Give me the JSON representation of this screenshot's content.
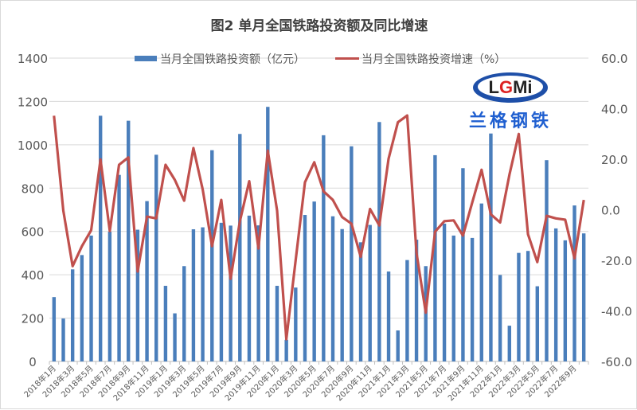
{
  "chart_data": {
    "type": "bar+line",
    "title": "图2 单月全国铁路投资额及同比增速",
    "x": [
      "2018年1月",
      "2018年2月",
      "2018年3月",
      "2018年4月",
      "2018年5月",
      "2018年6月",
      "2018年7月",
      "2018年8月",
      "2018年9月",
      "2018年10月",
      "2018年11月",
      "2018年12月",
      "2019年1月",
      "2019年2月",
      "2019年3月",
      "2019年4月",
      "2019年5月",
      "2019年6月",
      "2019年7月",
      "2019年8月",
      "2019年9月",
      "2019年10月",
      "2019年11月",
      "2019年12月",
      "2020年1月",
      "2020年2月",
      "2020年3月",
      "2020年4月",
      "2020年5月",
      "2020年6月",
      "2020年7月",
      "2020年8月",
      "2020年9月",
      "2020年10月",
      "2020年11月",
      "2020年12月",
      "2021年1月",
      "2021年2月",
      "2021年3月",
      "2021年4月",
      "2021年5月",
      "2021年6月",
      "2021年7月",
      "2021年8月",
      "2021年9月",
      "2021年10月",
      "2021年11月",
      "2021年12月",
      "2022年1月",
      "2022年2月",
      "2022年3月",
      "2022年4月",
      "2022年5月",
      "2022年6月",
      "2022年7月",
      "2022年8月",
      "2022年9月",
      "2022年10月"
    ],
    "x_tick_labels": [
      "2018年1月",
      "2018年3月",
      "2018年5月",
      "2018年7月",
      "2018年9月",
      "2018年11月",
      "2019年1月",
      "2019年3月",
      "2019年5月",
      "2019年7月",
      "2019年9月",
      "2019年11月",
      "2020年1月",
      "2020年3月",
      "2020年5月",
      "2020年7月",
      "2020年9月",
      "2020年11月",
      "2021年1月",
      "2021年3月",
      "2021年5月",
      "2021年7月",
      "2021年9月",
      "2021年11月",
      "2022年1月",
      "2022年3月",
      "2022年5月",
      "2022年7月",
      "2022年9月"
    ],
    "series": [
      {
        "name": "当月全国铁路投资额（亿元）",
        "type": "bar",
        "axis": "left",
        "color": "#4a7ebb",
        "values": [
          297,
          198,
          425,
          491,
          581,
          1134,
          599,
          861,
          1111,
          608,
          740,
          954,
          349,
          222,
          440,
          610,
          619,
          975,
          640,
          627,
          1050,
          673,
          628,
          1175,
          349,
          100,
          341,
          676,
          738,
          1044,
          670,
          611,
          993,
          550,
          630,
          1105,
          415,
          143,
          468,
          562,
          440,
          952,
          636,
          581,
          892,
          570,
          729,
          1052,
          399,
          165,
          501,
          510,
          347,
          929,
          614,
          559,
          720,
          591
        ]
      },
      {
        "name": "当月全国铁路投资增速（%）",
        "type": "line",
        "axis": "right",
        "color": "#c0504d",
        "values": [
          37.2,
          -0.3,
          -22.3,
          -14.4,
          -8.1,
          19.9,
          -8.4,
          17.8,
          20.7,
          -24.4,
          -2.7,
          -3.4,
          17.8,
          11.8,
          3.6,
          24.4,
          8,
          -14.4,
          3.9,
          -27.3,
          -4.5,
          11.3,
          -15.3,
          23.4,
          -0.3,
          -51.2,
          -20,
          10.9,
          18.8,
          7.3,
          3.9,
          -2.9,
          -5.5,
          -18.6,
          0.3,
          -6.2,
          20.2,
          34.6,
          37.3,
          -17.1,
          -40.7,
          -8.7,
          -4.5,
          -4.2,
          -10.2,
          2.9,
          15.8,
          -1.8,
          -5.0,
          13.9,
          30,
          -9.7,
          -20.7,
          -2.4,
          -3.4,
          -3.9,
          -19.2,
          3.9
        ]
      }
    ],
    "y_left": {
      "range": [
        0,
        1400
      ],
      "ticks": [
        "0",
        "200",
        "400",
        "600",
        "800",
        "1000",
        "1200",
        "1400"
      ]
    },
    "y_right": {
      "range": [
        -60,
        60
      ],
      "ticks": [
        "-60.0",
        "-40.0",
        "-20.0",
        "0.0",
        "20.0",
        "40.0",
        "60.0"
      ]
    },
    "grid": true,
    "legend": "top"
  },
  "watermark": {
    "logo_text": "LGMi",
    "name": "兰格钢铁"
  }
}
